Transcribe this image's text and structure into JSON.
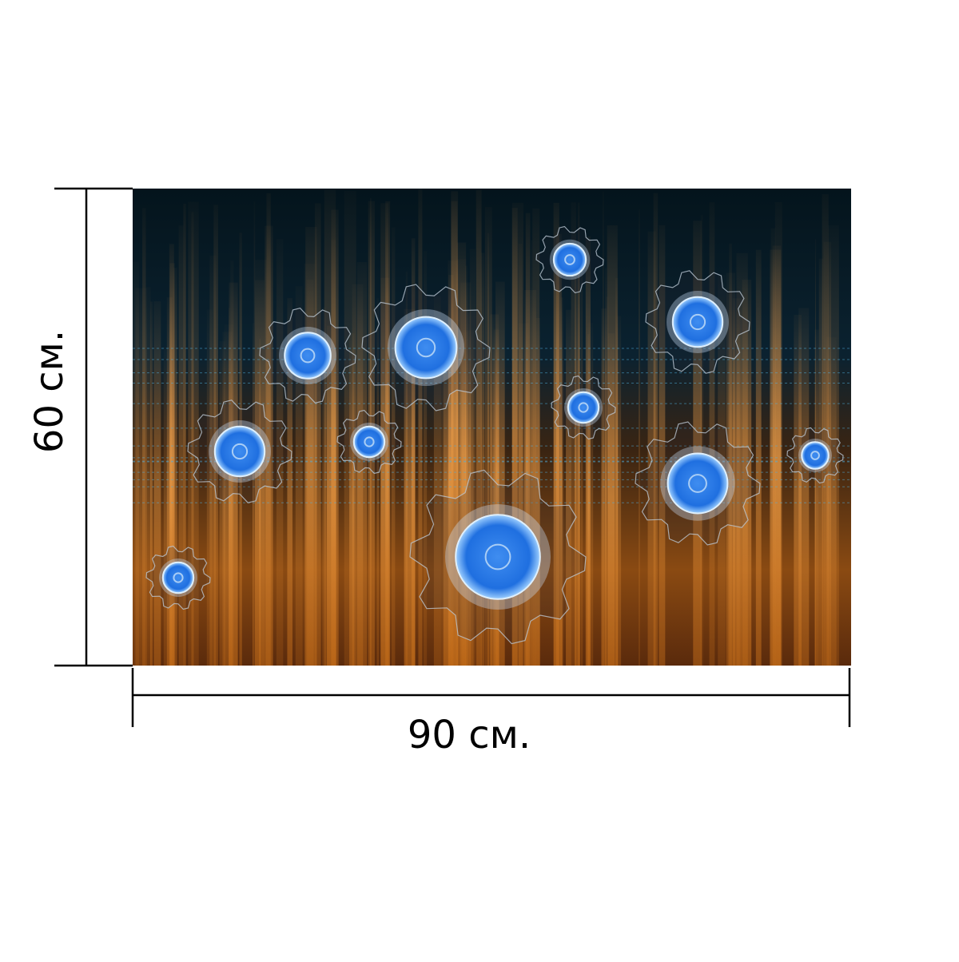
{
  "height_label": "60 см.",
  "width_label": "90 см."
}
